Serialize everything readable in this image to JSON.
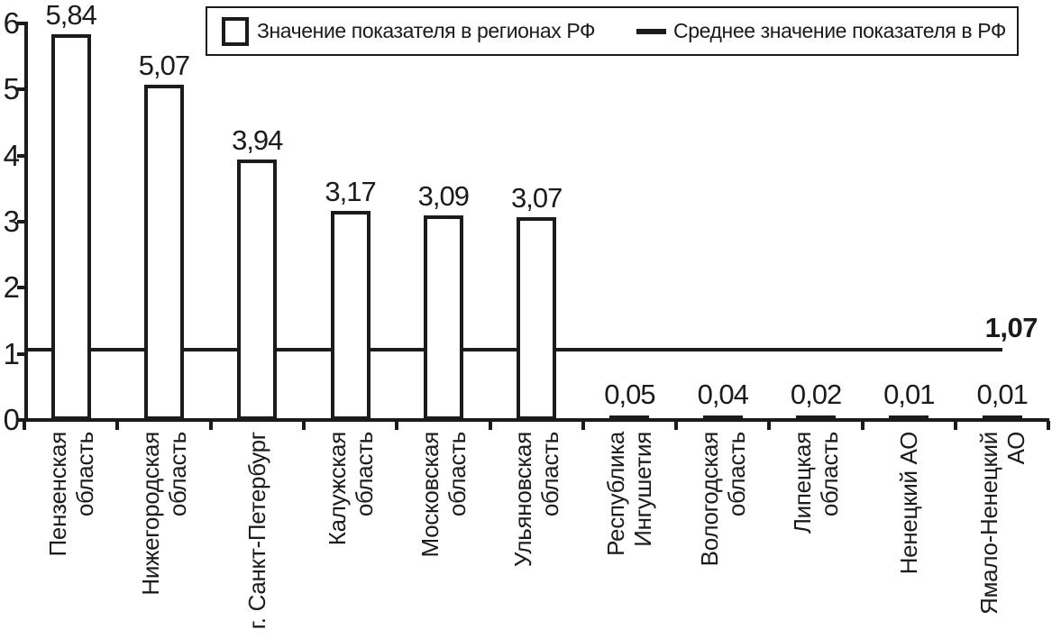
{
  "chart_data": {
    "type": "bar",
    "title": "",
    "categories": [
      "Пензенская\nобласть",
      "Нижегородская\nобласть",
      "г. Санкт-Петербург",
      "Калужская\nобласть",
      "Московская\nобласть",
      "Ульяновская\nобласть",
      "Республика\nИнгушетия",
      "Вологодская\nобласть",
      "Липецкая\nобласть",
      "Ненецкий АО",
      "Ямало-Ненецкий АО"
    ],
    "values": [
      5.84,
      5.07,
      3.94,
      3.17,
      3.09,
      3.07,
      0.05,
      0.04,
      0.02,
      0.01,
      0.01
    ],
    "value_labels": [
      "5,84",
      "5,07",
      "3,94",
      "3,17",
      "3,09",
      "3,07",
      "0,05",
      "0,04",
      "0,02",
      "0,01",
      "0,01"
    ],
    "average": 1.07,
    "average_label": "1,07",
    "y_ticks": [
      0,
      1,
      2,
      3,
      4,
      5,
      6
    ],
    "ylim": [
      0,
      6
    ],
    "grid": false,
    "legend_position": "top",
    "legend": [
      {
        "label": "Значение показателя в регионах РФ",
        "marker": "bar"
      },
      {
        "label": "Среднее значение показателя в РФ",
        "marker": "line"
      }
    ],
    "colors": {
      "bar_fill": "#ffffff",
      "bar_border": "#1b1b1b",
      "average_line": "#1b1b1b",
      "text": "#1b1b1b",
      "background": "#ffffff"
    }
  }
}
